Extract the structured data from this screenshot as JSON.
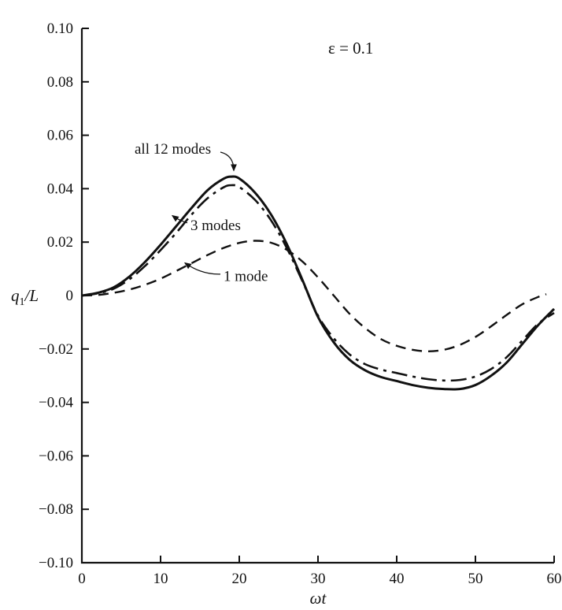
{
  "chart_data": {
    "type": "line",
    "title_annotation": "ε = 0.1",
    "xlabel": "ωt",
    "ylabel": {
      "base": "q",
      "sub": "1",
      "suffix": "/L"
    },
    "xlim": [
      0,
      60
    ],
    "ylim": [
      -0.1,
      0.1
    ],
    "grid": false,
    "legend_position": "inline-labels",
    "xtick_values": [
      0,
      10,
      20,
      30,
      40,
      50,
      60
    ],
    "xtick_labels": [
      "0",
      "10",
      "20",
      "30",
      "40",
      "50",
      "60"
    ],
    "ytick_values": [
      0.1,
      0.08,
      0.06,
      0.04,
      0.02,
      0,
      -0.02,
      -0.04,
      -0.06,
      -0.08,
      -0.1
    ],
    "ytick_labels": [
      "0.10",
      "0.08",
      "0.06",
      "0.04",
      "0.02",
      "0",
      "−0.02",
      "−0.04",
      "−0.06",
      "−0.08",
      "−0.10"
    ],
    "series": [
      {
        "name": "all 12 modes",
        "style": "solid",
        "x": [
          0,
          2,
          4,
          6,
          8,
          10,
          12,
          14,
          16,
          18,
          19,
          20,
          22,
          24,
          26,
          28,
          30,
          32,
          34,
          36,
          38,
          40,
          42,
          44,
          46,
          48,
          50,
          52,
          54,
          56,
          58,
          60
        ],
        "y": [
          0,
          0.001,
          0.003,
          0.007,
          0.0125,
          0.019,
          0.026,
          0.033,
          0.0395,
          0.0437,
          0.0445,
          0.0438,
          0.0385,
          0.0305,
          0.0195,
          0.006,
          -0.008,
          -0.0175,
          -0.024,
          -0.028,
          -0.0305,
          -0.032,
          -0.0335,
          -0.0345,
          -0.035,
          -0.035,
          -0.0335,
          -0.03,
          -0.025,
          -0.018,
          -0.011,
          -0.005
        ]
      },
      {
        "name": "3 modes",
        "style": "dashdot",
        "x": [
          0,
          2,
          4,
          6,
          8,
          10,
          12,
          14,
          16,
          18,
          19,
          20,
          22,
          24,
          26,
          28,
          30,
          32,
          34,
          36,
          38,
          40,
          42,
          44,
          46,
          48,
          50,
          52,
          54,
          56,
          58,
          60
        ],
        "y": [
          0,
          0.0008,
          0.0025,
          0.006,
          0.011,
          0.017,
          0.0235,
          0.0305,
          0.0365,
          0.0405,
          0.0413,
          0.0406,
          0.0358,
          0.0283,
          0.018,
          0.0055,
          -0.0075,
          -0.016,
          -0.022,
          -0.0257,
          -0.0277,
          -0.029,
          -0.0303,
          -0.0313,
          -0.0318,
          -0.0316,
          -0.0303,
          -0.0275,
          -0.023,
          -0.0167,
          -0.0105,
          -0.0065
        ]
      },
      {
        "name": "1 mode",
        "style": "dashed",
        "x": [
          0,
          2,
          4,
          6,
          8,
          10,
          12,
          14,
          16,
          18,
          20,
          22,
          24,
          26,
          28,
          30,
          32,
          34,
          36,
          38,
          40,
          42,
          44,
          46,
          48,
          50,
          52,
          54,
          56,
          58,
          59
        ],
        "y": [
          0,
          0.0002,
          0.001,
          0.0022,
          0.004,
          0.0063,
          0.0092,
          0.0122,
          0.0152,
          0.0178,
          0.0197,
          0.0205,
          0.0198,
          0.0172,
          0.0128,
          0.0068,
          0.0,
          -0.0068,
          -0.0122,
          -0.0163,
          -0.0188,
          -0.0203,
          -0.0209,
          -0.0203,
          -0.0185,
          -0.0155,
          -0.0115,
          -0.0072,
          -0.0032,
          -0.0005,
          0.0005
        ]
      }
    ],
    "labels": [
      {
        "text": "all 12 modes",
        "tx": 6.7,
        "ty": 0.0548,
        "anchor": "start",
        "arrow": {
          "x1": 17.6,
          "y1": 0.0537,
          "cx": 19.3,
          "cy": 0.0525,
          "x2": 19.3,
          "y2": 0.0468
        }
      },
      {
        "text": "3 modes",
        "tx": 13.8,
        "ty": 0.0262,
        "anchor": "start",
        "arrow": {
          "x1": 13.4,
          "y1": 0.0272,
          "cx": 12.3,
          "cy": 0.0282,
          "x2": 11.5,
          "y2": 0.0299
        }
      },
      {
        "text": "1 mode",
        "tx": 18.0,
        "ty": 0.0072,
        "anchor": "start",
        "arrow": {
          "x1": 17.6,
          "y1": 0.008,
          "cx": 15.2,
          "cy": 0.0078,
          "x2": 13.1,
          "y2": 0.0122
        }
      }
    ],
    "annotation": {
      "x": 31.3,
      "y": 0.0905
    }
  }
}
